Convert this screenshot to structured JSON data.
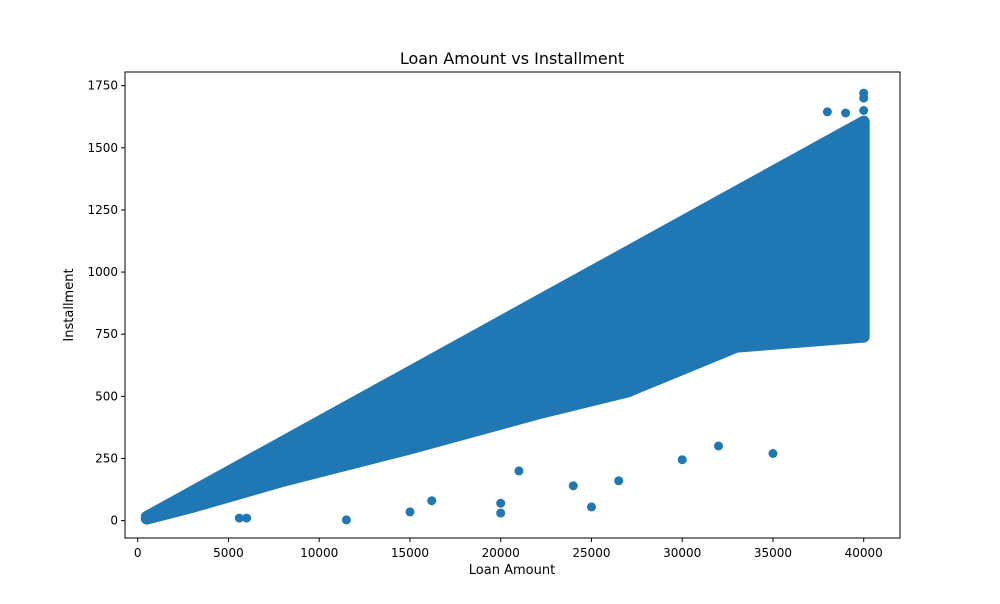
{
  "chart_data": {
    "type": "scatter",
    "title": "Loan Amount vs Installment",
    "xlabel": "Loan Amount",
    "ylabel": "Installment",
    "xlim": [
      -700,
      42000
    ],
    "ylim": [
      -70,
      1805
    ],
    "xticks": [
      0,
      5000,
      10000,
      15000,
      20000,
      25000,
      30000,
      35000,
      40000
    ],
    "yticks": [
      0,
      250,
      500,
      750,
      1000,
      1250,
      1500,
      1750
    ],
    "grid": false,
    "legend": null,
    "colors": {
      "marker": "#1f77b4",
      "axes": "#000000",
      "background": "#ffffff"
    },
    "series": [
      {
        "description_of_density": "dense band between installment ≈ 0.025×amount (upper) and ≈ 0.0215×amount falling to ≈0.021×amount (lower)",
        "x": [
          500,
          1000,
          2000,
          3000,
          5000,
          6000,
          8000,
          10000,
          12000,
          14000,
          16000,
          18000,
          20000,
          22000,
          24000,
          26000,
          28000,
          30000,
          32000,
          34000,
          35000,
          36000,
          38000,
          40000,
          5600,
          6000,
          11500,
          15000,
          16200,
          20000,
          20000,
          21000,
          24000,
          25000,
          26500,
          30000,
          32000,
          35000,
          38000,
          39000,
          40000,
          40000,
          40000
        ],
        "y": [
          15,
          28,
          55,
          82,
          135,
          160,
          210,
          260,
          305,
          350,
          395,
          440,
          480,
          520,
          565,
          610,
          660,
          700,
          745,
          790,
          820,
          850,
          900,
          950,
          10,
          10,
          3,
          35,
          80,
          30,
          70,
          200,
          140,
          55,
          160,
          245,
          300,
          270,
          1645,
          1640,
          1720,
          1700,
          1650
        ]
      }
    ]
  }
}
